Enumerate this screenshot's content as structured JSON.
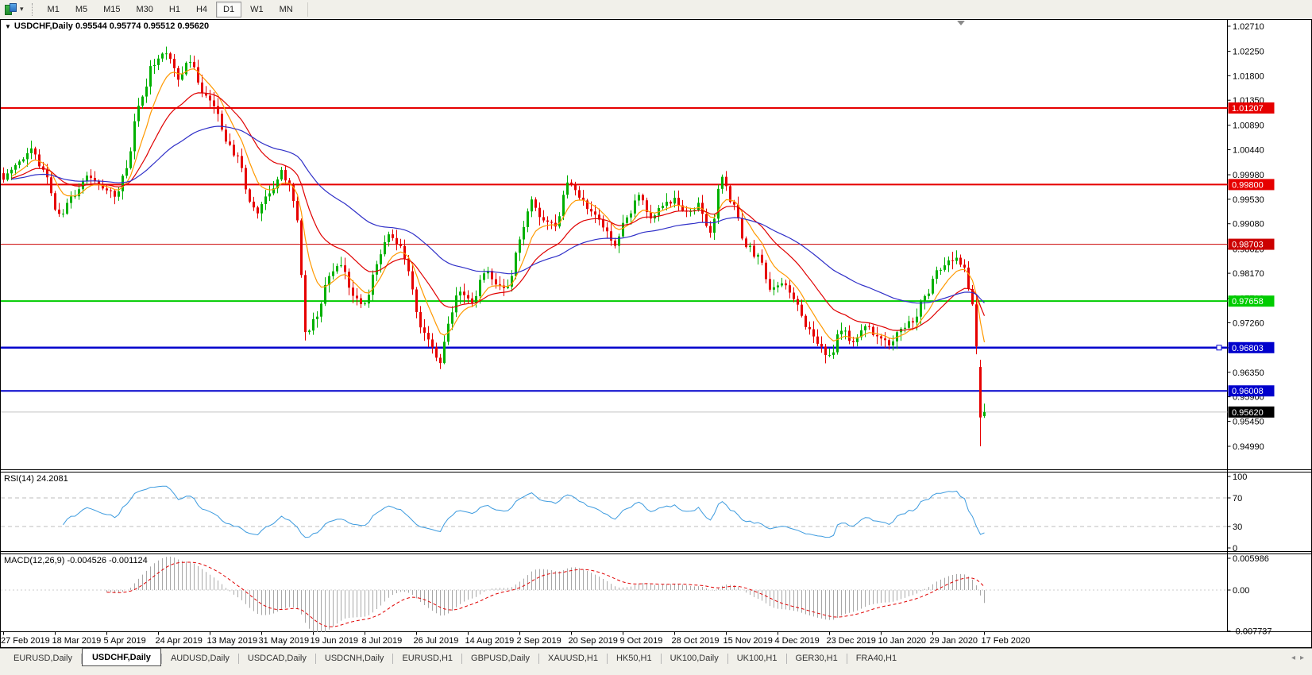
{
  "toolbar": {
    "timeframes": [
      "M1",
      "M5",
      "M15",
      "M30",
      "H1",
      "H4",
      "D1",
      "W1",
      "MN"
    ],
    "active_timeframe": "D1",
    "icon": "chart-type-icon",
    "caret": "▾"
  },
  "chart": {
    "symbol": "USDCHF",
    "period": "Daily",
    "full_title": "USDCHF,Daily 0.95544 0.95774 0.95512 0.95620"
  },
  "rsi": {
    "label": "RSI(14) 24.2081",
    "ticks": [
      "100",
      "70",
      "30",
      "0"
    ],
    "line_color": "#3d9bdf"
  },
  "macd": {
    "label": "MACD(12,26,9) -0.004526 -0.001124",
    "ticks": [
      "0.005986",
      "0.00",
      "-0.007737"
    ],
    "hist_color": "#a8a8a8",
    "signal_color": "#e00000"
  },
  "tabs": {
    "items": [
      "EURUSD,Daily",
      "USDCHF,Daily",
      "AUDUSD,Daily",
      "USDCAD,Daily",
      "USDCNH,Daily",
      "EURUSD,H1",
      "GBPUSD,Daily",
      "XAUUSD,H1",
      "HK50,H1",
      "UK100,Daily",
      "UK100,H1",
      "GER30,H1",
      "FRA40,H1"
    ],
    "active": "USDCHF,Daily",
    "nav_left": "◂",
    "nav_right": "▸"
  },
  "chart_data": {
    "type": "candlestick",
    "symbol": "USDCHF",
    "timeframe": "Daily",
    "n_candles": 248,
    "up_color": "#00b000",
    "down_color": "#e60000",
    "price_axis_ticks": [
      "1.02710",
      "1.02250",
      "1.01800",
      "1.01350",
      "1.00890",
      "1.00440",
      "0.99980",
      "0.99530",
      "0.99080",
      "0.98620",
      "0.98170",
      "0.97710",
      "0.97260",
      "0.96800",
      "0.96350",
      "0.95900",
      "0.95450",
      "0.94990"
    ],
    "axis_top_price": 1.0271,
    "axis_bottom_price": 0.9499,
    "date_labels": [
      "27 Feb 2019",
      "18 Mar 2019",
      "5 Apr 2019",
      "24 Apr 2019",
      "13 May 2019",
      "31 May 2019",
      "19 Jun 2019",
      "8 Jul 2019",
      "26 Jul 2019",
      "14 Aug 2019",
      "2 Sep 2019",
      "20 Sep 2019",
      "9 Oct 2019",
      "28 Oct 2019",
      "15 Nov 2019",
      "4 Dec 2019",
      "23 Dec 2019",
      "10 Jan 2020",
      "29 Jan 2020",
      "17 Feb 2020"
    ],
    "date_step_candles": 13,
    "last_candle": {
      "open": 0.95544,
      "high": 0.95774,
      "low": 0.95512,
      "close": 0.9562
    },
    "prev_candle": {
      "open": 0.9645,
      "high": 0.9658,
      "low": 0.9499,
      "close": 0.9552
    },
    "price_path_anchors": [
      [
        0,
        0.9992
      ],
      [
        4,
        1.0022
      ],
      [
        7,
        1.0046
      ],
      [
        10,
        1.0008
      ],
      [
        14,
        0.9924
      ],
      [
        18,
        0.9958
      ],
      [
        21,
        0.9996
      ],
      [
        25,
        0.9974
      ],
      [
        28,
        0.996
      ],
      [
        31,
        1.0012
      ],
      [
        34,
        1.0125
      ],
      [
        38,
        1.0205
      ],
      [
        41,
        1.0222
      ],
      [
        44,
        1.0178
      ],
      [
        47,
        1.0208
      ],
      [
        50,
        1.015
      ],
      [
        53,
        1.0128
      ],
      [
        56,
        1.0058
      ],
      [
        59,
        1.0032
      ],
      [
        62,
        0.9952
      ],
      [
        64,
        0.993
      ],
      [
        67,
        0.9968
      ],
      [
        70,
        1.0002
      ],
      [
        72,
        0.9984
      ],
      [
        74,
        0.9912
      ],
      [
        76,
        0.9706
      ],
      [
        79,
        0.9742
      ],
      [
        82,
        0.9812
      ],
      [
        85,
        0.9836
      ],
      [
        88,
        0.9778
      ],
      [
        91,
        0.9758
      ],
      [
        94,
        0.9832
      ],
      [
        97,
        0.9892
      ],
      [
        100,
        0.9868
      ],
      [
        102,
        0.9818
      ],
      [
        105,
        0.9716
      ],
      [
        108,
        0.9682
      ],
      [
        110,
        0.9652
      ],
      [
        112,
        0.9724
      ],
      [
        115,
        0.9788
      ],
      [
        118,
        0.9762
      ],
      [
        121,
        0.9822
      ],
      [
        124,
        0.9798
      ],
      [
        127,
        0.9788
      ],
      [
        130,
        0.9884
      ],
      [
        133,
        0.9948
      ],
      [
        136,
        0.9918
      ],
      [
        139,
        0.9902
      ],
      [
        142,
        0.9986
      ],
      [
        145,
        0.9958
      ],
      [
        148,
        0.9934
      ],
      [
        151,
        0.9904
      ],
      [
        154,
        0.9866
      ],
      [
        157,
        0.9922
      ],
      [
        160,
        0.9958
      ],
      [
        163,
        0.9914
      ],
      [
        166,
        0.9942
      ],
      [
        169,
        0.9952
      ],
      [
        172,
        0.9928
      ],
      [
        175,
        0.9942
      ],
      [
        178,
        0.9888
      ],
      [
        181,
        0.9996
      ],
      [
        184,
        0.9938
      ],
      [
        187,
        0.9868
      ],
      [
        190,
        0.9846
      ],
      [
        193,
        0.9792
      ],
      [
        196,
        0.9802
      ],
      [
        199,
        0.9774
      ],
      [
        202,
        0.9722
      ],
      [
        205,
        0.9688
      ],
      [
        208,
        0.9664
      ],
      [
        211,
        0.9712
      ],
      [
        214,
        0.9692
      ],
      [
        217,
        0.9722
      ],
      [
        220,
        0.9702
      ],
      [
        223,
        0.9686
      ],
      [
        226,
        0.9716
      ],
      [
        229,
        0.9732
      ],
      [
        232,
        0.9772
      ],
      [
        235,
        0.9822
      ],
      [
        238,
        0.9842
      ],
      [
        240,
        0.9846
      ],
      [
        242,
        0.9828
      ],
      [
        244,
        0.9758
      ],
      [
        245,
        0.9688
      ],
      [
        246,
        0.9552
      ],
      [
        247,
        0.9562
      ]
    ],
    "moving_averages": [
      {
        "period": 8,
        "color": "#ff9900"
      },
      {
        "period": 21,
        "color": "#e00000"
      },
      {
        "period": 55,
        "color": "#3030c8"
      }
    ],
    "horizontal_levels": [
      {
        "price": 1.01207,
        "label": "1.01207",
        "color": "#e60000",
        "width": 2
      },
      {
        "price": 0.998,
        "label": "0.99800",
        "color": "#e60000",
        "width": 2
      },
      {
        "price": 0.98703,
        "label": "0.98703",
        "color": "#cc0000",
        "width": 1
      },
      {
        "price": 0.97658,
        "label": "0.97658",
        "color": "#00cc00",
        "width": 2
      },
      {
        "price": 0.96803,
        "label": "0.96803",
        "color": "#0000cc",
        "width": 2.5
      },
      {
        "price": 0.96008,
        "label": "0.96008",
        "color": "#0000cc",
        "width": 2
      }
    ],
    "current_price": {
      "price": 0.9562,
      "label": "0.95620",
      "line_color": "#c0c0c0",
      "label_bg": "#000000"
    },
    "indicators": [
      {
        "type": "RSI",
        "period": 14,
        "current": 24.2081,
        "levels": [
          70,
          30
        ],
        "range": [
          0,
          100
        ]
      },
      {
        "type": "MACD",
        "fast": 12,
        "slow": 26,
        "signal": 9,
        "current_main": -0.004526,
        "current_signal": -0.001124
      }
    ]
  }
}
